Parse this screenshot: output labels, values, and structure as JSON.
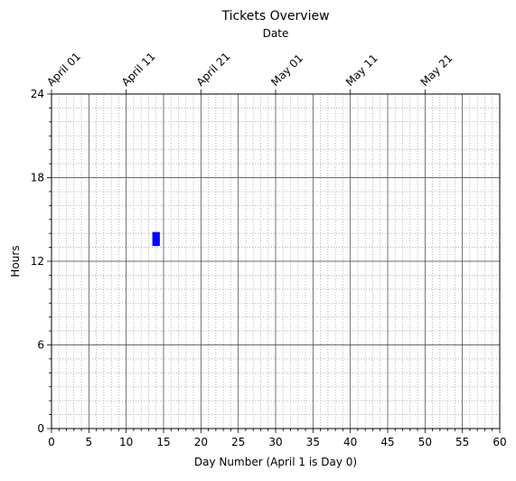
{
  "chart_data": {
    "type": "bar",
    "title": "Tickets Overview",
    "xlabel": "Day Number (April 1 is Day 0)",
    "ylabel": "Hours",
    "top_xlabel": "Date",
    "xlim": [
      0,
      60
    ],
    "ylim": [
      0,
      24
    ],
    "x_major_ticks": [
      0,
      5,
      10,
      15,
      20,
      25,
      30,
      35,
      40,
      45,
      50,
      55,
      60
    ],
    "x_minor_step": 1,
    "y_major_ticks": [
      0,
      6,
      12,
      18,
      24
    ],
    "y_minor_step": 1,
    "top_ticks": [
      {
        "x": 0,
        "label": "April 01"
      },
      {
        "x": 10,
        "label": "April 11"
      },
      {
        "x": 20,
        "label": "April 21"
      },
      {
        "x": 30,
        "label": "May 01"
      },
      {
        "x": 40,
        "label": "May 11"
      },
      {
        "x": 50,
        "label": "May 21"
      }
    ],
    "grid": {
      "major": true,
      "minor": true,
      "minor_style": "dotted"
    },
    "series": [
      {
        "color": "#0000ff",
        "bars": [
          {
            "x": 14,
            "y_start": 13.1,
            "y_end": 14.1,
            "width": 1
          }
        ]
      }
    ]
  }
}
